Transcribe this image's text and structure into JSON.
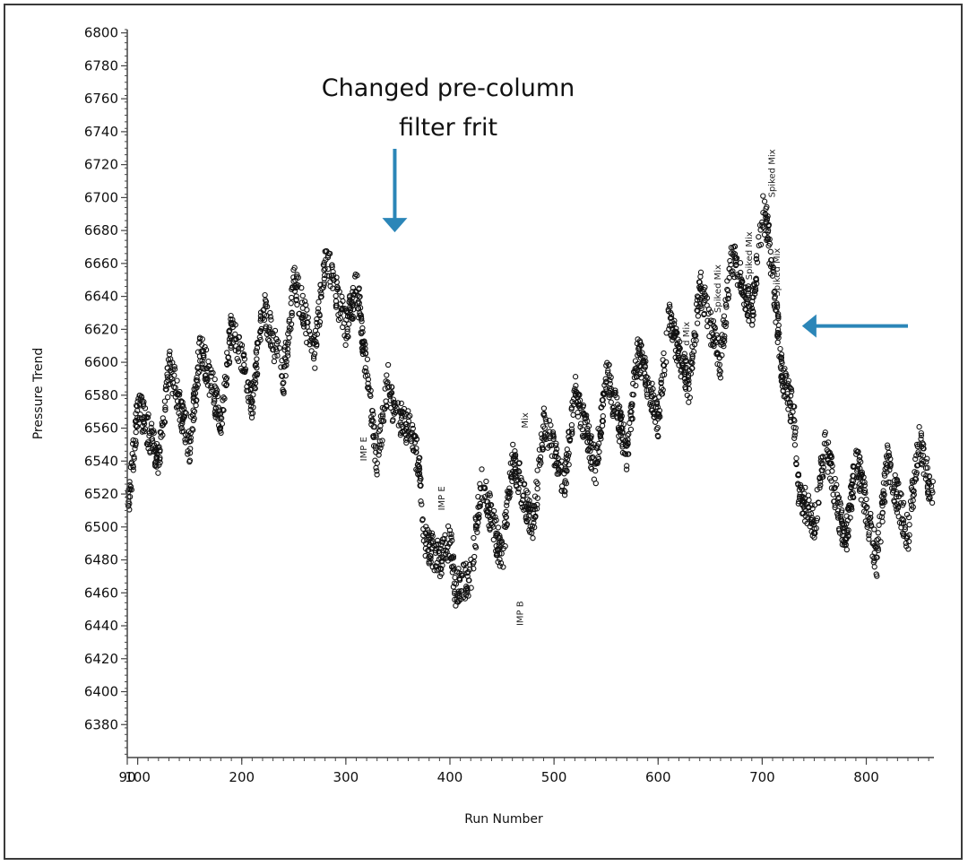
{
  "chart_data": {
    "type": "scatter",
    "title": "",
    "xlabel": "Run Number",
    "ylabel": "Pressure Trend",
    "xlim": [
      90,
      865
    ],
    "ylim": [
      6360,
      6802
    ],
    "x_ticks": [
      90,
      100,
      200,
      300,
      400,
      500,
      600,
      700,
      800
    ],
    "y_ticks": [
      6380,
      6400,
      6420,
      6440,
      6460,
      6480,
      6500,
      6520,
      6540,
      6560,
      6580,
      6600,
      6620,
      6640,
      6660,
      6680,
      6700,
      6720,
      6740,
      6760,
      6780,
      6800
    ],
    "grid": false,
    "legend": "none",
    "series": [
      {
        "x": [
          90,
          100,
          120,
          150,
          180,
          210,
          240,
          270,
          300,
          330,
          345,
          360,
          375,
          390,
          405,
          420,
          450,
          480,
          510,
          540,
          570,
          600,
          630,
          660,
          690,
          705,
          720,
          735,
          750,
          780,
          810,
          840,
          865
        ],
        "y": [
          6525,
          6540,
          6560,
          6570,
          6585,
          6595,
          6610,
          6625,
          6640,
          6560,
          6550,
          6580,
          6470,
          6500,
          6440,
          6490,
          6500,
          6520,
          6545,
          6555,
          6565,
          6585,
          6605,
          6620,
          6650,
          6660,
          6610,
          6500,
          6520,
          6510,
          6500,
          6515,
          6520
        ]
      }
    ],
    "annotations": [
      {
        "text": "Changed pre-column filter frit",
        "lines": [
          "Changed pre-column",
          "filter frit"
        ],
        "arrow_direction": "down",
        "x": 347,
        "y": 6680
      },
      {
        "text": "",
        "arrow_direction": "left",
        "x": 740,
        "y": 6622
      }
    ],
    "point_labels": [
      {
        "text": "Spiked Mix",
        "x": 712,
        "y": 6700
      },
      {
        "text": "Spiked Mix",
        "x": 717,
        "y": 6640
      },
      {
        "text": "Spiked Mix",
        "x": 690,
        "y": 6650
      },
      {
        "text": "Spiked Mix",
        "x": 660,
        "y": 6630
      },
      {
        "text": "d Mix",
        "x": 630,
        "y": 6610
      },
      {
        "text": "IMP E",
        "x": 395,
        "y": 6510
      },
      {
        "text": "IMP B",
        "x": 470,
        "y": 6440
      },
      {
        "text": "Mix",
        "x": 475,
        "y": 6560
      },
      {
        "text": "IMP E",
        "x": 320,
        "y": 6540
      }
    ],
    "colors": {
      "points": "#111111",
      "arrow": "#2b86b8",
      "axis": "#444444",
      "frame": "#3a3a3a"
    }
  }
}
